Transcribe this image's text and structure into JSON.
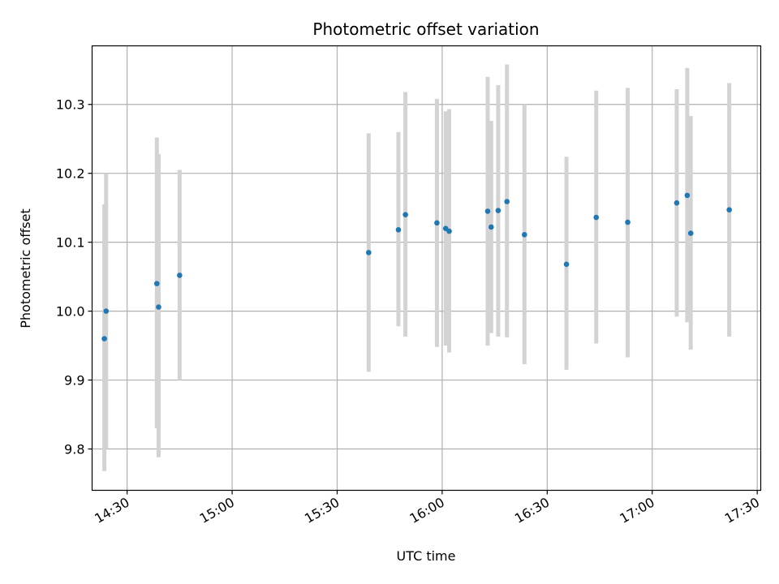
{
  "chart_data": {
    "type": "scatter",
    "title": "Photometric offset variation",
    "xlabel": "UTC time",
    "ylabel": "Photometric offset",
    "x_axis_kind": "time",
    "xlim": [
      "14:20",
      "17:31"
    ],
    "ylim": [
      9.74,
      10.385
    ],
    "grid": true,
    "x_ticks": [
      "14:30",
      "15:00",
      "15:30",
      "16:00",
      "16:30",
      "17:00",
      "17:30"
    ],
    "y_ticks": [
      "9.8",
      "9.9",
      "10.0",
      "10.1",
      "10.2",
      "10.3"
    ],
    "y_tick_values": [
      9.8,
      9.9,
      10.0,
      10.1,
      10.2,
      10.3
    ],
    "point_color": "#1f77b4",
    "errorbar_color": "#d3d3d3",
    "points": [
      {
        "time": "14:23:30",
        "y": 9.96,
        "yerr_low": 9.768,
        "yerr_high": 10.155
      },
      {
        "time": "14:24:00",
        "y": 10.0,
        "yerr_low": 9.8,
        "yerr_high": 10.2
      },
      {
        "time": "14:38:30",
        "y": 10.04,
        "yerr_low": 9.83,
        "yerr_high": 10.252
      },
      {
        "time": "14:39:00",
        "y": 10.006,
        "yerr_low": 9.788,
        "yerr_high": 10.228
      },
      {
        "time": "14:45:00",
        "y": 10.052,
        "yerr_low": 9.9,
        "yerr_high": 10.205
      },
      {
        "time": "15:39:00",
        "y": 10.085,
        "yerr_low": 9.912,
        "yerr_high": 10.258
      },
      {
        "time": "15:47:30",
        "y": 10.118,
        "yerr_low": 9.978,
        "yerr_high": 10.26
      },
      {
        "time": "15:49:30",
        "y": 10.14,
        "yerr_low": 9.963,
        "yerr_high": 10.318
      },
      {
        "time": "15:58:30",
        "y": 10.128,
        "yerr_low": 9.948,
        "yerr_high": 10.308
      },
      {
        "time": "16:01:00",
        "y": 10.12,
        "yerr_low": 9.95,
        "yerr_high": 10.29
      },
      {
        "time": "16:02:00",
        "y": 10.116,
        "yerr_low": 9.94,
        "yerr_high": 10.293
      },
      {
        "time": "16:13:00",
        "y": 10.145,
        "yerr_low": 9.95,
        "yerr_high": 10.34
      },
      {
        "time": "16:14:00",
        "y": 10.122,
        "yerr_low": 9.968,
        "yerr_high": 10.276
      },
      {
        "time": "16:16:00",
        "y": 10.146,
        "yerr_low": 9.963,
        "yerr_high": 10.328
      },
      {
        "time": "16:18:30",
        "y": 10.159,
        "yerr_low": 9.962,
        "yerr_high": 10.358
      },
      {
        "time": "16:23:30",
        "y": 10.111,
        "yerr_low": 9.923,
        "yerr_high": 10.3
      },
      {
        "time": "16:35:30",
        "y": 10.068,
        "yerr_low": 9.915,
        "yerr_high": 10.224
      },
      {
        "time": "16:44:00",
        "y": 10.136,
        "yerr_low": 9.953,
        "yerr_high": 10.32
      },
      {
        "time": "16:53:00",
        "y": 10.129,
        "yerr_low": 9.933,
        "yerr_high": 10.324
      },
      {
        "time": "17:07:00",
        "y": 10.157,
        "yerr_low": 9.992,
        "yerr_high": 10.322
      },
      {
        "time": "17:10:00",
        "y": 10.168,
        "yerr_low": 9.984,
        "yerr_high": 10.353
      },
      {
        "time": "17:11:00",
        "y": 10.113,
        "yerr_low": 9.944,
        "yerr_high": 10.283
      },
      {
        "time": "17:22:00",
        "y": 10.147,
        "yerr_low": 9.963,
        "yerr_high": 10.331
      }
    ]
  }
}
